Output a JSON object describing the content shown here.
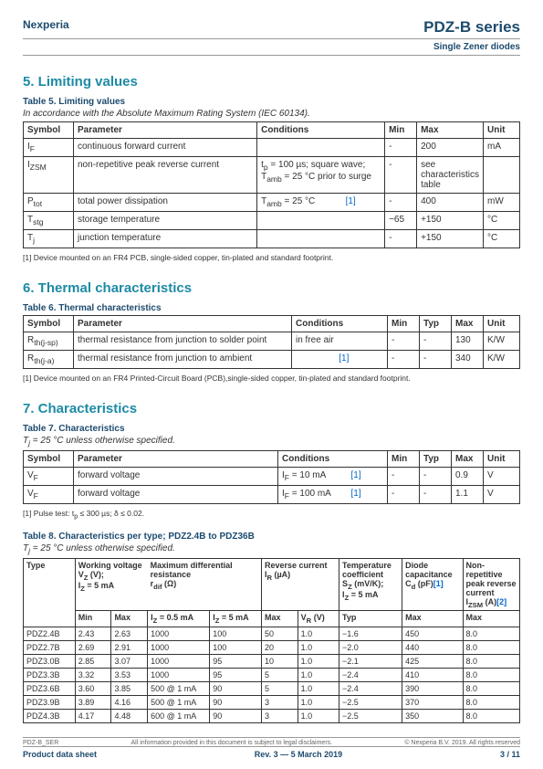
{
  "header": {
    "brand": "Nexperia",
    "title": "PDZ-B series",
    "subtitle": "Single Zener diodes"
  },
  "section5": {
    "heading": "5.  Limiting values",
    "table_title": "Table 5. Limiting values",
    "table_sub": "In accordance with the Absolute Maximum Rating System (IEC 60134).",
    "cols": [
      "Symbol",
      "Parameter",
      "Conditions",
      "Min",
      "Max",
      "Unit"
    ],
    "rows": [
      {
        "sym": "I<sub class='sub'>F</sub>",
        "param": "continuous forward current",
        "cond": "",
        "min": "-",
        "max": "200",
        "unit": "mA"
      },
      {
        "sym": "I<sub class='sub'>ZSM</sub>",
        "param": "non-repetitive peak reverse current",
        "cond": "t<sub class='sub'>p</sub> = 100 µs; square wave;<br>T<sub class='sub'>amb</sub> = 25 °C prior to surge",
        "min": "-",
        "max": "see characteristics table",
        "unit": ""
      },
      {
        "sym": "P<sub class='sub'>tot</sub>",
        "param": "total power dissipation",
        "cond": "T<sub class='sub'>amb</sub> = 25 °C &nbsp;&nbsp;&nbsp;&nbsp;&nbsp;&nbsp;&nbsp;&nbsp;&nbsp;&nbsp;&nbsp;<span class='footnote-ref'>[1]</span>",
        "min": "-",
        "max": "400",
        "unit": "mW"
      },
      {
        "sym": "T<sub class='sub'>stg</sub>",
        "param": "storage temperature",
        "cond": "",
        "min": "−65",
        "max": "+150",
        "unit": "°C"
      },
      {
        "sym": "T<sub class='sub'>j</sub>",
        "param": "junction temperature",
        "cond": "",
        "min": "-",
        "max": "+150",
        "unit": "°C"
      }
    ],
    "footnote": "[1]   Device mounted on an FR4 PCB, single-sided copper, tin-plated and standard footprint."
  },
  "section6": {
    "heading": "6.  Thermal characteristics",
    "table_title": "Table 6. Thermal characteristics",
    "cols": [
      "Symbol",
      "Parameter",
      "Conditions",
      "Min",
      "Typ",
      "Max",
      "Unit"
    ],
    "rows": [
      {
        "sym": "R<sub class='sub'>th(j-sp)</sub>",
        "param": "thermal resistance from junction to solder point",
        "cond": "in free air",
        "min": "-",
        "typ": "-",
        "max": "130",
        "unit": "K/W"
      },
      {
        "sym": "R<sub class='sub'>th(j-a)</sub>",
        "param": "thermal resistance from junction to ambient",
        "cond": "&nbsp;&nbsp;&nbsp;&nbsp;&nbsp;&nbsp;&nbsp;&nbsp;&nbsp;&nbsp;&nbsp;&nbsp;&nbsp;&nbsp;&nbsp;&nbsp;&nbsp;<span class='footnote-ref'>[1]</span>",
        "min": "-",
        "typ": "-",
        "max": "340",
        "unit": "K/W"
      }
    ],
    "footnote": "[1]   Device mounted on an FR4 Printed-Circuit Board (PCB),single-sided copper, tin-plated and standard footprint."
  },
  "section7": {
    "heading": "7.  Characteristics",
    "table7_title": "Table 7. Characteristics",
    "table7_sub": "T<sub class='sub'>j</sub> = 25 °C unless otherwise specified.",
    "t7cols": [
      "Symbol",
      "Parameter",
      "Conditions",
      "Min",
      "Typ",
      "Max",
      "Unit"
    ],
    "t7rows": [
      {
        "sym": "V<sub class='sub'>F</sub>",
        "param": "forward voltage",
        "cond": "I<sub class='sub'>F</sub> = 10 mA &nbsp;&nbsp;&nbsp;&nbsp;&nbsp;&nbsp;&nbsp;&nbsp;&nbsp;<span class='footnote-ref'>[1]</span>",
        "min": "-",
        "typ": "-",
        "max": "0.9",
        "unit": "V"
      },
      {
        "sym": "V<sub class='sub'>F</sub>",
        "param": "forward voltage",
        "cond": "I<sub class='sub'>F</sub> = 100 mA &nbsp;&nbsp;&nbsp;&nbsp;&nbsp;&nbsp;&nbsp;<span class='footnote-ref'>[1]</span>",
        "min": "-",
        "typ": "-",
        "max": "1.1",
        "unit": "V"
      }
    ],
    "t7foot": "[1]   Pulse test: t<sub class='sub'>p</sub> ≤ 300 µs; δ ≤ 0.02.",
    "table8_title": "Table 8. Characteristics per type; PDZ2.4B to PDZ36B",
    "table8_sub": "T<sub class='sub'>j</sub> = 25 °C unless otherwise specified.",
    "t8rows": [
      [
        "PDZ2.4B",
        "2.43",
        "2.63",
        "1000",
        "100",
        "50",
        "1.0",
        "−1.6",
        "450",
        "8.0"
      ],
      [
        "PDZ2.7B",
        "2.69",
        "2.91",
        "1000",
        "100",
        "20",
        "1.0",
        "−2.0",
        "440",
        "8.0"
      ],
      [
        "PDZ3.0B",
        "2.85",
        "3.07",
        "1000",
        "95",
        "10",
        "1.0",
        "−2.1",
        "425",
        "8.0"
      ],
      [
        "PDZ3.3B",
        "3.32",
        "3.53",
        "1000",
        "95",
        "5",
        "1.0",
        "−2.4",
        "410",
        "8.0"
      ],
      [
        "PDZ3.6B",
        "3.60",
        "3.85",
        "500 @ 1 mA",
        "90",
        "5",
        "1.0",
        "−2.4",
        "390",
        "8.0"
      ],
      [
        "PDZ3.9B",
        "3.89",
        "4.16",
        "500 @ 1 mA",
        "90",
        "3",
        "1.0",
        "−2.5",
        "370",
        "8.0"
      ],
      [
        "PDZ4.3B",
        "4.17",
        "4.48",
        "600 @ 1 mA",
        "90",
        "3",
        "1.0",
        "−2.5",
        "350",
        "8.0"
      ]
    ]
  },
  "footer": {
    "docref": "PDZ-B_SER",
    "disclaimer": "All information provided in this document is subject to legal disclaimers.",
    "copyright": "© Nexperia B.V. 2019. All rights reserved",
    "left": "Product data sheet",
    "center": "Rev. 3 — 5 March 2019",
    "right": "3 / 11"
  }
}
